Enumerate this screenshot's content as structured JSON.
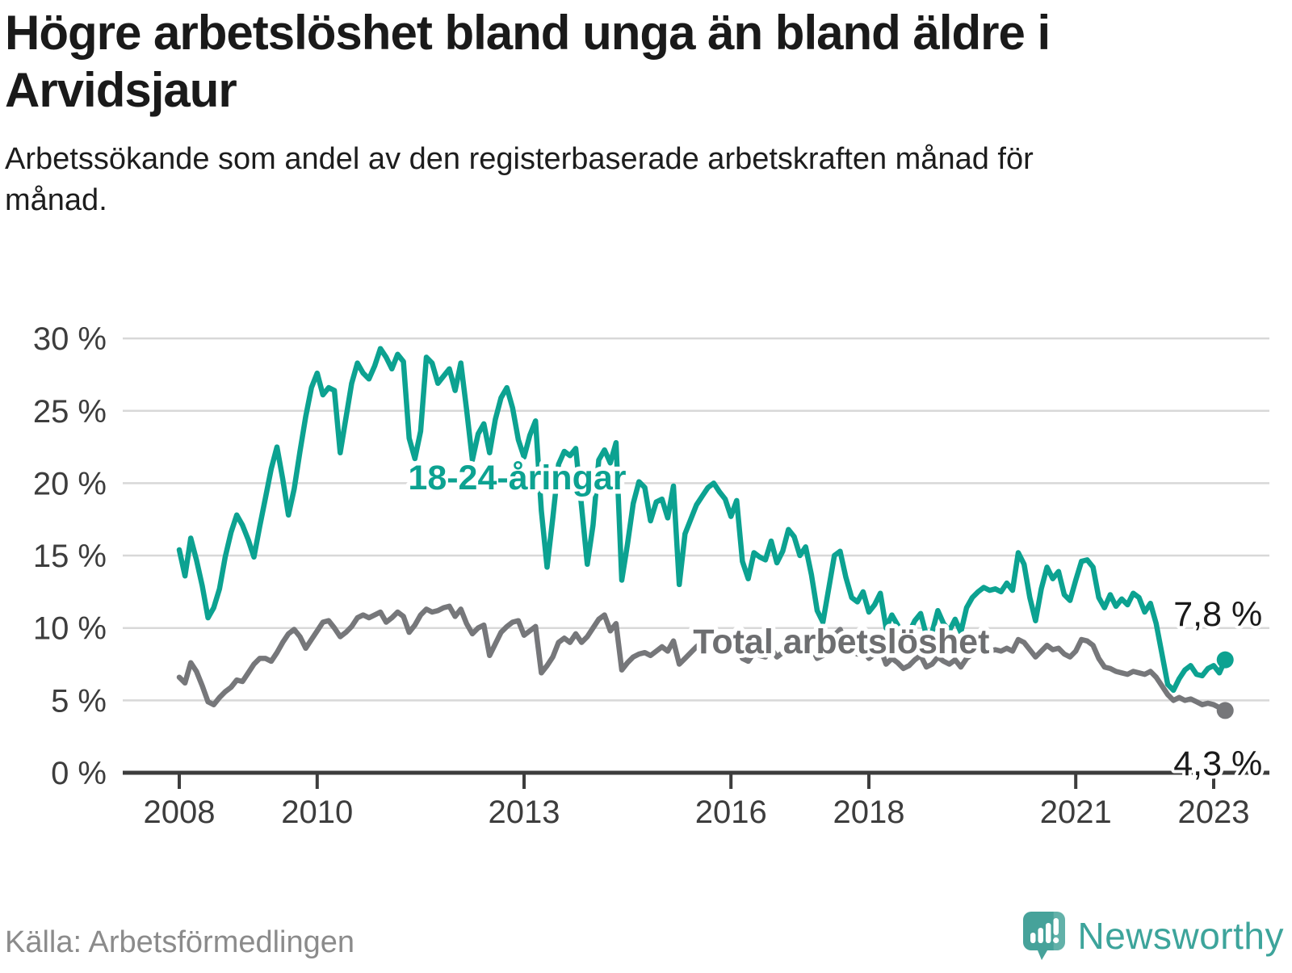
{
  "header": {
    "title": "Högre arbetslöshet bland unga än bland äldre i Arvidsjaur",
    "subtitle": "Arbetssökande som andel av den registerbaserade arbetskraften månad för månad."
  },
  "footer": {
    "source": "Källa: Arbetsförmedlingen",
    "brand": "Newsworthy"
  },
  "colors": {
    "young_line": "#0ca291",
    "total_line": "#76777a",
    "young_label": "#0ca291",
    "total_label": "#6d6e70",
    "grid": "#d8d8d8",
    "axis": "#3d3d3d",
    "tick_label": "#3d3d3d",
    "value_label": "#1a1a1a",
    "halo": "#ffffff",
    "brand_teal": "#48a59d"
  },
  "chart_data": {
    "type": "line",
    "title": "Högre arbetslöshet bland unga än bland äldre i Arvidsjaur",
    "x_start_year": 2008,
    "x_step_months": 1,
    "x_end": "2023-03",
    "ylim": [
      0,
      30
    ],
    "grid": true,
    "y_ticks": [
      {
        "value": 0,
        "label": "0 %"
      },
      {
        "value": 5,
        "label": "5 %"
      },
      {
        "value": 10,
        "label": "10 %"
      },
      {
        "value": 15,
        "label": "15 %"
      },
      {
        "value": 20,
        "label": "20 %"
      },
      {
        "value": 25,
        "label": "25 %"
      },
      {
        "value": 30,
        "label": "30 %"
      }
    ],
    "x_ticks": [
      {
        "year": 2008,
        "label": "2008"
      },
      {
        "year": 2010,
        "label": "2010"
      },
      {
        "year": 2013,
        "label": "2013"
      },
      {
        "year": 2016,
        "label": "2016"
      },
      {
        "year": 2018,
        "label": "2018"
      },
      {
        "year": 2021,
        "label": "2021"
      },
      {
        "year": 2023,
        "label": "2023"
      }
    ],
    "series": [
      {
        "id": "total",
        "name": "Total arbetslöshet",
        "color": "#76777a",
        "label_color": "#6d6e70",
        "end_label": "4,3 %",
        "end_value": 4.3,
        "label_pos": {
          "year": 2017.6,
          "value": 9.1
        },
        "values": [
          6.6,
          6.2,
          7.6,
          7.0,
          6.0,
          4.9,
          4.7,
          5.2,
          5.6,
          5.9,
          6.4,
          6.3,
          6.9,
          7.5,
          7.9,
          7.9,
          7.7,
          8.3,
          9.0,
          9.6,
          9.9,
          9.4,
          8.6,
          9.2,
          9.8,
          10.4,
          10.5,
          10.0,
          9.4,
          9.7,
          10.1,
          10.7,
          10.9,
          10.7,
          10.9,
          11.1,
          10.4,
          10.7,
          11.1,
          10.8,
          9.7,
          10.2,
          10.9,
          11.3,
          11.1,
          11.2,
          11.4,
          11.5,
          10.8,
          11.3,
          10.3,
          9.6,
          10.0,
          10.2,
          8.1,
          8.9,
          9.7,
          10.1,
          10.4,
          10.5,
          9.5,
          9.8,
          10.1,
          6.9,
          7.4,
          8.0,
          9.0,
          9.3,
          9.0,
          9.6,
          9.0,
          9.4,
          10.0,
          10.6,
          10.9,
          9.8,
          10.3,
          7.1,
          7.6,
          8.0,
          8.2,
          8.3,
          8.1,
          8.4,
          8.7,
          8.4,
          9.1,
          7.5,
          7.9,
          8.3,
          8.7,
          9.0,
          9.2,
          9.3,
          9.1,
          8.9,
          8.6,
          9.0,
          7.9,
          7.7,
          8.3,
          8.1,
          8.0,
          8.6,
          8.0,
          8.3,
          9.0,
          9.6,
          9.2,
          9.5,
          8.7,
          7.9,
          8.1,
          8.6,
          9.5,
          9.9,
          9.0,
          8.4,
          8.2,
          8.5,
          7.9,
          8.2,
          8.6,
          7.5,
          7.9,
          7.6,
          7.2,
          7.4,
          7.8,
          8.1,
          7.3,
          7.5,
          8.0,
          7.7,
          7.5,
          7.8,
          7.3,
          7.9,
          8.2,
          8.4,
          8.5,
          8.4,
          8.5,
          8.4,
          8.6,
          8.4,
          9.2,
          9.0,
          8.5,
          8.0,
          8.4,
          8.8,
          8.5,
          8.6,
          8.2,
          8.0,
          8.4,
          9.2,
          9.1,
          8.8,
          7.9,
          7.3,
          7.2,
          7.0,
          6.9,
          6.8,
          7.0,
          6.9,
          6.8,
          7.0,
          6.6,
          6.0,
          5.4,
          5.0,
          5.2,
          5.0,
          5.1,
          4.9,
          4.7,
          4.8,
          4.7,
          4.5,
          4.3
        ]
      },
      {
        "id": "young",
        "name": "18-24-åringar",
        "color": "#0ca291",
        "label_color": "#0ca291",
        "end_label": "7,8 %",
        "end_value": 7.8,
        "label_pos": {
          "year": 2012.9,
          "value": 20.4
        },
        "values": [
          15.4,
          13.6,
          16.2,
          14.7,
          12.9,
          10.7,
          11.4,
          12.7,
          14.9,
          16.6,
          17.8,
          17.1,
          16.1,
          14.9,
          17.0,
          19.0,
          21.0,
          22.5,
          20.3,
          17.8,
          19.6,
          22.2,
          24.6,
          26.6,
          27.6,
          26.1,
          26.6,
          26.4,
          22.1,
          24.5,
          26.9,
          28.3,
          27.6,
          27.2,
          28.1,
          29.3,
          28.7,
          27.9,
          28.9,
          28.4,
          23.1,
          21.7,
          23.6,
          28.7,
          28.3,
          26.9,
          27.4,
          27.9,
          26.4,
          28.3,
          25.1,
          21.6,
          23.4,
          24.1,
          22.1,
          24.4,
          25.9,
          26.6,
          25.2,
          23.0,
          21.8,
          23.3,
          24.3,
          18.1,
          14.2,
          17.6,
          21.3,
          22.2,
          21.9,
          22.4,
          18.4,
          14.4,
          17.1,
          21.6,
          22.3,
          21.4,
          22.8,
          13.3,
          15.8,
          18.6,
          20.1,
          19.7,
          17.4,
          18.7,
          18.9,
          17.6,
          19.8,
          13.0,
          16.5,
          17.5,
          18.5,
          19.1,
          19.7,
          20.0,
          19.4,
          18.9,
          17.7,
          18.8,
          14.6,
          13.4,
          15.2,
          14.9,
          14.7,
          16.0,
          14.5,
          15.3,
          16.8,
          16.3,
          15.0,
          15.6,
          13.7,
          11.2,
          10.4,
          12.7,
          15.0,
          15.3,
          13.5,
          12.1,
          11.8,
          12.5,
          11.1,
          11.6,
          12.4,
          10.0,
          10.9,
          10.2,
          9.4,
          9.7,
          10.5,
          11.0,
          9.5,
          9.7,
          11.2,
          10.3,
          9.8,
          10.6,
          9.7,
          11.4,
          12.1,
          12.5,
          12.8,
          12.6,
          12.7,
          12.5,
          13.1,
          12.6,
          15.2,
          14.4,
          12.1,
          10.5,
          12.7,
          14.2,
          13.4,
          13.9,
          12.3,
          11.9,
          13.3,
          14.6,
          14.7,
          14.2,
          12.1,
          11.4,
          12.3,
          11.5,
          12.0,
          11.6,
          12.4,
          12.1,
          11.1,
          11.7,
          10.3,
          8.2,
          6.1,
          5.7,
          6.5,
          7.1,
          7.4,
          6.8,
          6.7,
          7.2,
          7.4,
          6.9,
          7.8
        ]
      }
    ]
  }
}
